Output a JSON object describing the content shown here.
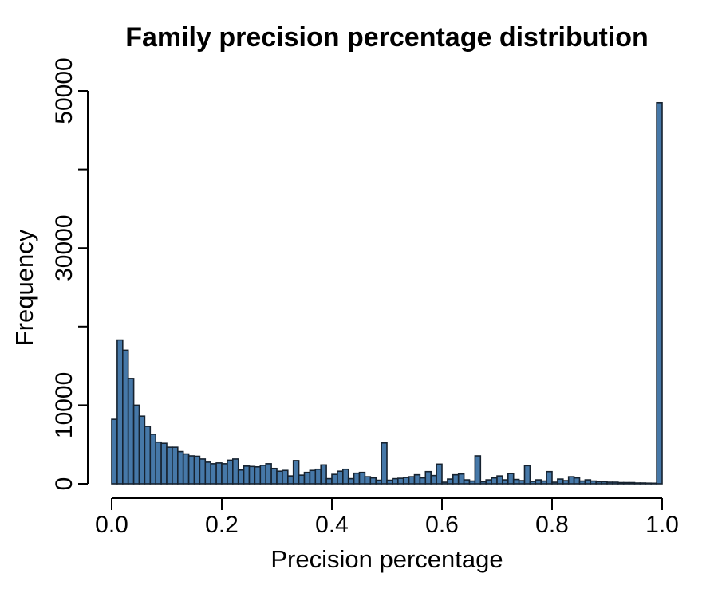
{
  "chart_data": {
    "type": "bar",
    "subtype": "histogram",
    "title": "Family precision percentage distribution",
    "xlabel": "Precision percentage",
    "ylabel": "Frequency",
    "xlim": [
      0.0,
      1.0
    ],
    "ylim": [
      0,
      50000
    ],
    "grid": false,
    "legend": null,
    "bin_start": 0.0,
    "bin_width": 0.01,
    "counts": [
      8200,
      18300,
      17000,
      13400,
      10000,
      8600,
      7300,
      6300,
      5300,
      5150,
      4650,
      4650,
      4100,
      3800,
      3550,
      3500,
      3150,
      2750,
      2550,
      2650,
      2550,
      3000,
      3150,
      1750,
      2250,
      2200,
      2150,
      2350,
      2550,
      1950,
      1600,
      1700,
      1000,
      2950,
      1100,
      1450,
      1700,
      1850,
      2400,
      650,
      1200,
      1600,
      1850,
      650,
      1350,
      1450,
      900,
      750,
      450,
      5200,
      450,
      650,
      700,
      800,
      900,
      1150,
      750,
      1550,
      1050,
      2500,
      200,
      600,
      1150,
      1250,
      500,
      350,
      3550,
      250,
      500,
      750,
      1000,
      500,
      1300,
      550,
      400,
      2300,
      300,
      500,
      350,
      1550,
      200,
      600,
      400,
      900,
      750,
      350,
      500,
      350,
      250,
      250,
      200,
      200,
      150,
      150,
      150,
      100,
      100,
      80,
      70,
      48500
    ],
    "x_ticks": [
      0.0,
      0.2,
      0.4,
      0.6,
      0.8,
      1.0
    ],
    "x_tick_labels": [
      "0.0",
      "0.2",
      "0.4",
      "0.6",
      "0.8",
      "1.0"
    ],
    "y_ticks": [
      0,
      10000,
      20000,
      30000,
      40000,
      50000
    ],
    "y_tick_labels": [
      "0",
      "10000",
      "",
      "30000",
      "",
      "50000"
    ],
    "colors": {
      "bar_fill": "#4678A8",
      "bar_border": "#16222F",
      "axis": "#000000",
      "text": "#000000",
      "background": "#FFFFFF"
    }
  }
}
